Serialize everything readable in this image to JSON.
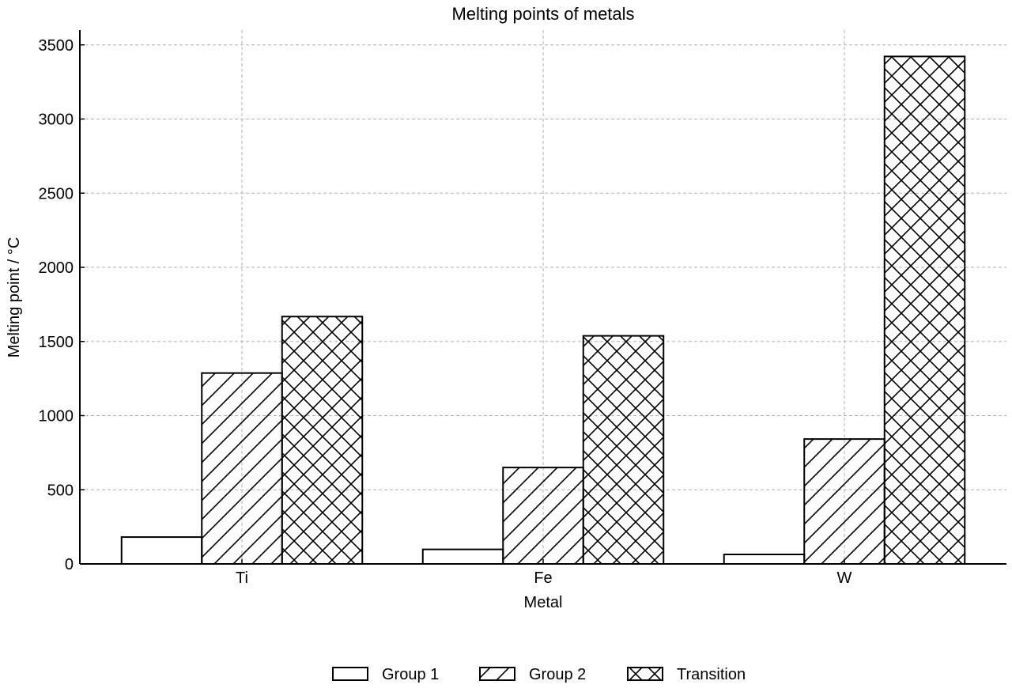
{
  "chart_data": {
    "type": "bar",
    "title": "Melting points of metals",
    "xlabel": "Metal",
    "ylabel": "Melting point / °C",
    "categories": [
      "Ti",
      "Fe",
      "W"
    ],
    "series": [
      {
        "name": "Group 1",
        "values": [
          181,
          98,
          64
        ],
        "hatch": "none"
      },
      {
        "name": "Group 2",
        "values": [
          1287,
          650,
          842
        ],
        "hatch": "diagonal"
      },
      {
        "name": "Transition",
        "values": [
          1668,
          1538,
          3422
        ],
        "hatch": "crosshatch"
      }
    ],
    "ylim": [
      0,
      3600
    ],
    "yticks": [
      0,
      500,
      1000,
      1500,
      2000,
      2500,
      3000,
      3500
    ],
    "grid": true,
    "legend_position": "bottom-center",
    "colors": {
      "fill": "#ffffff",
      "edge": "#000000",
      "grid": "#b0b0b0"
    }
  }
}
